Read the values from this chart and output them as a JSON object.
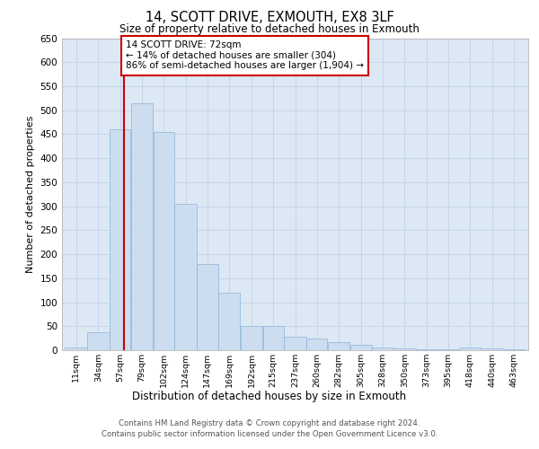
{
  "title": "14, SCOTT DRIVE, EXMOUTH, EX8 3LF",
  "subtitle": "Size of property relative to detached houses in Exmouth",
  "xlabel": "Distribution of detached houses by size in Exmouth",
  "ylabel": "Number of detached properties",
  "footer_line1": "Contains HM Land Registry data © Crown copyright and database right 2024.",
  "footer_line2": "Contains public sector information licensed under the Open Government Licence v3.0.",
  "bar_color": "#ccddf0",
  "bar_edge_color": "#8ab4d8",
  "grid_color": "#c5d5e8",
  "bg_color": "#dde8f5",
  "vline_x": 72,
  "vline_color": "#cc0000",
  "annotation_text": "14 SCOTT DRIVE: 72sqm\n← 14% of detached houses are smaller (304)\n86% of semi-detached houses are larger (1,904) →",
  "annotation_box_color": "#cc0000",
  "categories": [
    "11sqm",
    "34sqm",
    "57sqm",
    "79sqm",
    "102sqm",
    "124sqm",
    "147sqm",
    "169sqm",
    "192sqm",
    "215sqm",
    "237sqm",
    "260sqm",
    "282sqm",
    "305sqm",
    "328sqm",
    "350sqm",
    "373sqm",
    "395sqm",
    "418sqm",
    "440sqm",
    "463sqm"
  ],
  "bin_edges": [
    11,
    34,
    57,
    79,
    102,
    124,
    147,
    169,
    192,
    215,
    237,
    260,
    282,
    305,
    328,
    350,
    373,
    395,
    418,
    440,
    463,
    486
  ],
  "values": [
    5,
    37,
    460,
    515,
    455,
    305,
    180,
    120,
    50,
    50,
    28,
    25,
    17,
    11,
    5,
    3,
    2,
    1,
    6,
    4,
    2
  ],
  "ylim": [
    0,
    650
  ],
  "yticks": [
    0,
    50,
    100,
    150,
    200,
    250,
    300,
    350,
    400,
    450,
    500,
    550,
    600,
    650
  ]
}
